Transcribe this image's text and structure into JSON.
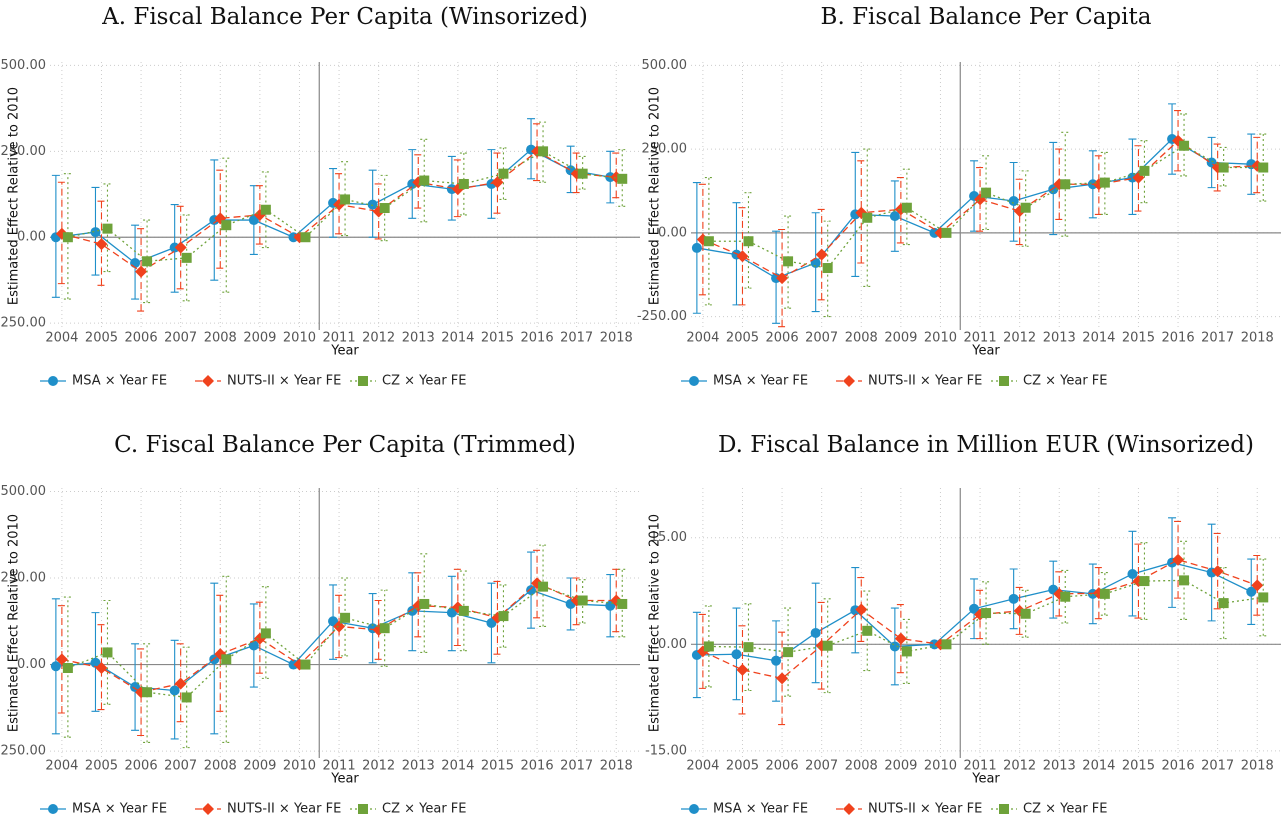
{
  "chart_data": [
    {
      "type": "line",
      "title": "A. Fiscal Balance Per Capita (Winsorized)",
      "xlabel": "Year",
      "ylabel": "Estimated Effect Relative to 2010",
      "x": [
        2004,
        2005,
        2006,
        2007,
        2008,
        2009,
        2010,
        2011,
        2012,
        2013,
        2014,
        2015,
        2016,
        2017,
        2018
      ],
      "xlim": [
        2003.7,
        2018.6
      ],
      "xticks": [
        2004,
        2005,
        2006,
        2007,
        2008,
        2009,
        2010,
        2011,
        2012,
        2013,
        2014,
        2015,
        2016,
        2017,
        2018
      ],
      "ylim": [
        -270,
        510
      ],
      "yticks": [
        {
          "value": -250,
          "label": "-250.00"
        },
        {
          "value": 0,
          "label": "0.00"
        },
        {
          "value": 250,
          "label": "250.00"
        },
        {
          "value": 500,
          "label": "500.00"
        }
      ],
      "hline": 0,
      "vline": 2010.5,
      "grid": true,
      "legend": "bottom-left",
      "series": [
        {
          "name": "MSA × Year FE",
          "color": "#1f8fc9",
          "dash": "solid",
          "marker": "circle",
          "values": [
            0,
            15,
            -75,
            -30,
            50,
            50,
            0,
            100,
            95,
            155,
            140,
            155,
            255,
            195,
            175
          ],
          "lower": [
            -175,
            -110,
            -180,
            -160,
            -125,
            -50,
            0,
            0,
            0,
            55,
            50,
            55,
            170,
            130,
            100
          ],
          "upper": [
            180,
            145,
            35,
            95,
            225,
            150,
            0,
            200,
            195,
            255,
            235,
            255,
            345,
            265,
            250
          ]
        },
        {
          "name": "NUTS-II × Year FE",
          "color": "#f0421d",
          "dash": "dashed",
          "marker": "diamond",
          "values": [
            10,
            -20,
            -100,
            -30,
            55,
            65,
            0,
            95,
            75,
            160,
            140,
            160,
            250,
            185,
            175
          ],
          "lower": [
            -135,
            -140,
            -215,
            -150,
            -90,
            -20,
            0,
            10,
            -5,
            85,
            60,
            70,
            165,
            130,
            115
          ],
          "upper": [
            160,
            105,
            25,
            90,
            195,
            150,
            0,
            185,
            155,
            240,
            225,
            245,
            330,
            245,
            245
          ]
        },
        {
          "name": "CZ × Year FE",
          "color": "#6ea23a",
          "dash": "dotted",
          "marker": "square",
          "values": [
            0,
            25,
            -70,
            -60,
            35,
            80,
            0,
            110,
            85,
            165,
            155,
            185,
            250,
            185,
            170
          ],
          "lower": [
            -180,
            -100,
            -190,
            -185,
            -160,
            -30,
            0,
            5,
            -10,
            45,
            65,
            110,
            160,
            140,
            90
          ],
          "upper": [
            185,
            155,
            50,
            65,
            230,
            190,
            0,
            220,
            180,
            285,
            245,
            260,
            335,
            235,
            255
          ]
        }
      ]
    },
    {
      "type": "line",
      "title": "B. Fiscal Balance Per Capita",
      "xlabel": "Year",
      "ylabel": "Estimated Effect Relative to 2010",
      "x": [
        2004,
        2005,
        2006,
        2007,
        2008,
        2009,
        2010,
        2011,
        2012,
        2013,
        2014,
        2015,
        2016,
        2017,
        2018
      ],
      "xlim": [
        2003.7,
        2018.6
      ],
      "xticks": [
        2004,
        2005,
        2006,
        2007,
        2008,
        2009,
        2010,
        2011,
        2012,
        2013,
        2014,
        2015,
        2016,
        2017,
        2018
      ],
      "ylim": [
        -290,
        510
      ],
      "yticks": [
        {
          "value": -250,
          "label": "-250.00"
        },
        {
          "value": 0,
          "label": "0.00"
        },
        {
          "value": 250,
          "label": "250.00"
        },
        {
          "value": 500,
          "label": "500.00"
        }
      ],
      "hline": 0,
      "vline": 2010.5,
      "grid": true,
      "legend": "bottom-left",
      "series": [
        {
          "name": "MSA × Year FE",
          "color": "#1f8fc9",
          "dash": "solid",
          "marker": "circle",
          "values": [
            -45,
            -65,
            -135,
            -90,
            55,
            50,
            0,
            110,
            95,
            130,
            145,
            165,
            280,
            210,
            205
          ],
          "lower": [
            -240,
            -215,
            -270,
            -235,
            -130,
            -55,
            0,
            5,
            -25,
            -5,
            45,
            55,
            175,
            135,
            115
          ],
          "upper": [
            150,
            90,
            5,
            60,
            240,
            155,
            0,
            215,
            210,
            270,
            245,
            280,
            385,
            285,
            295
          ]
        },
        {
          "name": "NUTS-II × Year FE",
          "color": "#f0421d",
          "dash": "dashed",
          "marker": "diamond",
          "values": [
            -20,
            -70,
            -135,
            -65,
            60,
            70,
            0,
            100,
            65,
            145,
            145,
            165,
            275,
            195,
            200
          ],
          "lower": [
            -185,
            -215,
            -280,
            -200,
            -90,
            -30,
            0,
            5,
            -35,
            40,
            55,
            65,
            185,
            125,
            120
          ],
          "upper": [
            145,
            75,
            10,
            70,
            215,
            165,
            0,
            195,
            160,
            250,
            230,
            260,
            365,
            265,
            285
          ]
        },
        {
          "name": "CZ × Year FE",
          "color": "#6ea23a",
          "dash": "dotted",
          "marker": "square",
          "values": [
            -25,
            -25,
            -85,
            -105,
            45,
            75,
            0,
            120,
            75,
            145,
            150,
            185,
            260,
            195,
            195
          ],
          "lower": [
            -215,
            -165,
            -225,
            -250,
            -160,
            -35,
            0,
            10,
            -40,
            -10,
            55,
            90,
            170,
            140,
            95
          ],
          "upper": [
            165,
            120,
            50,
            35,
            250,
            190,
            0,
            230,
            185,
            300,
            240,
            275,
            355,
            255,
            295
          ]
        }
      ]
    },
    {
      "type": "line",
      "title": "C. Fiscal Balance Per Capita (Trimmed)",
      "xlabel": "Year",
      "ylabel": "Estimated Effect Relative to 2010",
      "x": [
        2004,
        2005,
        2006,
        2007,
        2008,
        2009,
        2010,
        2011,
        2012,
        2013,
        2014,
        2015,
        2016,
        2017,
        2018
      ],
      "xlim": [
        2003.7,
        2018.6
      ],
      "xticks": [
        2004,
        2005,
        2006,
        2007,
        2008,
        2009,
        2010,
        2011,
        2012,
        2013,
        2014,
        2015,
        2016,
        2017,
        2018
      ],
      "ylim": [
        -270,
        510
      ],
      "yticks": [
        {
          "value": -250,
          "label": "-250.00"
        },
        {
          "value": 0,
          "label": "0.00"
        },
        {
          "value": 250,
          "label": "250.00"
        },
        {
          "value": 500,
          "label": "500.00"
        }
      ],
      "hline": 0,
      "vline": 2010.5,
      "grid": true,
      "legend": "bottom-left",
      "series": [
        {
          "name": "MSA × Year FE",
          "color": "#1f8fc9",
          "dash": "solid",
          "marker": "circle",
          "values": [
            -5,
            5,
            -65,
            -75,
            15,
            55,
            0,
            125,
            105,
            155,
            150,
            120,
            215,
            175,
            170
          ],
          "lower": [
            -200,
            -135,
            -190,
            -215,
            -200,
            -65,
            0,
            15,
            5,
            40,
            40,
            5,
            105,
            100,
            80
          ],
          "upper": [
            190,
            150,
            60,
            70,
            235,
            175,
            0,
            230,
            205,
            265,
            255,
            235,
            325,
            250,
            260
          ]
        },
        {
          "name": "NUTS-II × Year FE",
          "color": "#f0421d",
          "dash": "dashed",
          "marker": "diamond",
          "values": [
            15,
            -10,
            -80,
            -55,
            30,
            75,
            0,
            110,
            100,
            170,
            165,
            135,
            235,
            185,
            185
          ],
          "lower": [
            -140,
            -130,
            -205,
            -165,
            -135,
            -25,
            0,
            20,
            15,
            80,
            55,
            30,
            135,
            115,
            95
          ],
          "upper": [
            170,
            115,
            45,
            60,
            200,
            180,
            0,
            200,
            185,
            265,
            275,
            240,
            330,
            250,
            275
          ]
        },
        {
          "name": "CZ × Year FE",
          "color": "#6ea23a",
          "dash": "dotted",
          "marker": "square",
          "values": [
            -10,
            35,
            -80,
            -95,
            15,
            90,
            0,
            135,
            105,
            175,
            155,
            140,
            225,
            185,
            175
          ],
          "lower": [
            -210,
            -115,
            -225,
            -240,
            -225,
            -40,
            0,
            25,
            -5,
            35,
            40,
            50,
            110,
            120,
            80
          ],
          "upper": [
            195,
            185,
            60,
            50,
            255,
            225,
            0,
            250,
            215,
            320,
            270,
            230,
            345,
            245,
            275
          ]
        }
      ]
    },
    {
      "type": "line",
      "title": "D. Fiscal Balance in Million EUR (Winsorized)",
      "xlabel": "Year",
      "ylabel": "Estimated Effect Relative to 2010",
      "x": [
        2004,
        2005,
        2006,
        2007,
        2008,
        2009,
        2010,
        2011,
        2012,
        2013,
        2014,
        2015,
        2016,
        2017,
        2018
      ],
      "xlim": [
        2003.7,
        2018.6
      ],
      "xticks": [
        2004,
        2005,
        2006,
        2007,
        2008,
        2009,
        2010,
        2011,
        2012,
        2013,
        2014,
        2015,
        2016,
        2017,
        2018
      ],
      "ylim": [
        -16,
        22
      ],
      "yticks": [
        {
          "value": -15,
          "label": "-15.00"
        },
        {
          "value": 0,
          "label": "0.00"
        },
        {
          "value": 15,
          "label": "15.00"
        }
      ],
      "hline": 0,
      "vline": 2010.5,
      "grid": true,
      "legend": "bottom-left",
      "series": [
        {
          "name": "MSA × Year FE",
          "color": "#1f8fc9",
          "dash": "solid",
          "marker": "circle",
          "values": [
            -1.5,
            -1.4,
            -2.3,
            1.6,
            4.8,
            -0.3,
            0,
            5,
            6.4,
            7.7,
            7.1,
            9.9,
            11.5,
            10.1,
            7.4
          ],
          "lower": [
            -7.5,
            -7.8,
            -8,
            -5.4,
            -1.2,
            -5.7,
            0,
            0.8,
            2.2,
            3.7,
            2.9,
            4,
            5.2,
            3.3,
            2.8
          ],
          "upper": [
            4.5,
            5.1,
            3.3,
            8.6,
            10.8,
            5.1,
            0,
            9.2,
            10.6,
            11.7,
            11.3,
            15.9,
            17.8,
            16.9,
            12
          ]
        },
        {
          "name": "NUTS-II × Year FE",
          "color": "#f0421d",
          "dash": "dashed",
          "marker": "diamond",
          "values": [
            -1,
            -3.6,
            -4.8,
            -0.2,
            4.9,
            0.8,
            0,
            4.2,
            4.7,
            7.1,
            7.2,
            8.9,
            11.9,
            10.3,
            8.3
          ],
          "lower": [
            -6.2,
            -9.8,
            -11.3,
            -6.3,
            0.4,
            -4,
            0,
            0.8,
            1.4,
            4,
            3.6,
            3.7,
            6.5,
            5,
            4.1
          ],
          "upper": [
            4.2,
            2.6,
            1.7,
            5.9,
            9.4,
            5.6,
            0,
            7.6,
            8,
            10.2,
            10.8,
            14.1,
            17.3,
            15.6,
            12.5
          ]
        },
        {
          "name": "CZ × Year FE",
          "color": "#6ea23a",
          "dash": "dotted",
          "marker": "square",
          "values": [
            -0.3,
            -0.4,
            -1.1,
            -0.2,
            1.9,
            -1,
            0,
            4.4,
            4.3,
            6.7,
            7.1,
            8.9,
            9,
            5.8,
            6.6
          ],
          "lower": [
            -6,
            -6.5,
            -7.3,
            -6.8,
            -3.7,
            -5.5,
            0,
            0,
            1,
            3,
            4.1,
            3.5,
            3.5,
            0.8,
            1.2
          ],
          "upper": [
            5.4,
            5.7,
            5.1,
            6.4,
            7.5,
            3.5,
            0,
            8.8,
            7.6,
            10.4,
            10.1,
            14.3,
            14.5,
            10.8,
            12
          ]
        }
      ]
    }
  ]
}
